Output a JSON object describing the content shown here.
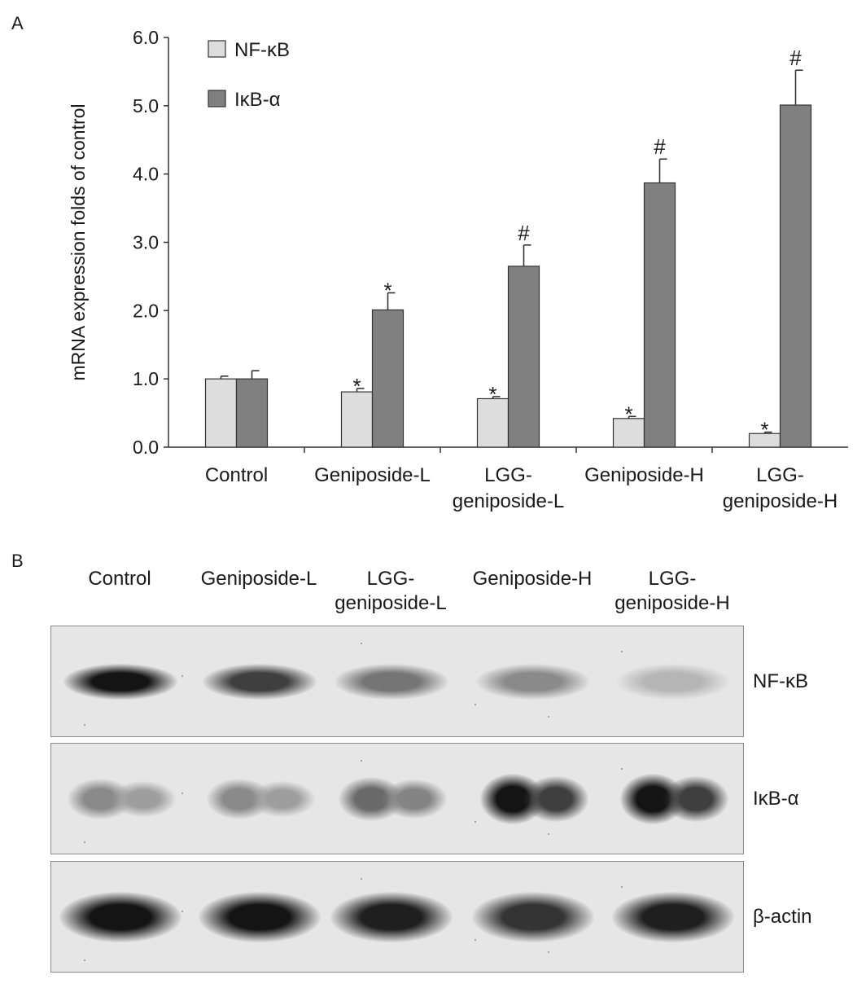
{
  "panel_a_label": "A",
  "panel_b_label": "B",
  "chart_data": {
    "type": "bar",
    "title": "",
    "xlabel": "",
    "ylabel": "mRNA expression folds of control",
    "ylim": [
      0,
      6
    ],
    "yticks": [
      "0.0",
      "1.0",
      "2.0",
      "3.0",
      "4.0",
      "5.0",
      "6.0"
    ],
    "categories": [
      [
        "Control"
      ],
      [
        "Geniposide-L"
      ],
      [
        "LGG-",
        "geniposide-L"
      ],
      [
        "Geniposide-H"
      ],
      [
        "LGG-",
        "geniposide-H"
      ]
    ],
    "series": [
      {
        "name": "NF-κB",
        "color": "#dddddd",
        "values": [
          1.0,
          0.81,
          0.71,
          0.42,
          0.2
        ],
        "errors": [
          0.04,
          0.05,
          0.03,
          0.03,
          0.02
        ],
        "marks": [
          "",
          "*",
          "*",
          "*",
          "*"
        ]
      },
      {
        "name": "IκB-α",
        "color": "#808080",
        "values": [
          1.0,
          2.01,
          2.65,
          3.87,
          5.01
        ],
        "errors": [
          0.12,
          0.25,
          0.31,
          0.35,
          0.51
        ],
        "marks": [
          "",
          "*",
          "#",
          "#",
          "#"
        ]
      }
    ],
    "legend_position": "top-left"
  },
  "blot": {
    "lanes": [
      [
        "Control"
      ],
      [
        "Geniposide-L"
      ],
      [
        "LGG-",
        "geniposide-L"
      ],
      [
        "Geniposide-H"
      ],
      [
        "LGG-",
        "geniposide-H"
      ]
    ],
    "rows": [
      {
        "label": "NF-κB",
        "intensities": [
          1.0,
          0.8,
          0.55,
          0.45,
          0.25
        ]
      },
      {
        "label": "IκB-α",
        "intensities": [
          0.45,
          0.45,
          0.6,
          1.0,
          1.0
        ]
      },
      {
        "label": "β-actin",
        "intensities": [
          1.0,
          1.0,
          0.95,
          0.85,
          0.95
        ]
      }
    ]
  }
}
